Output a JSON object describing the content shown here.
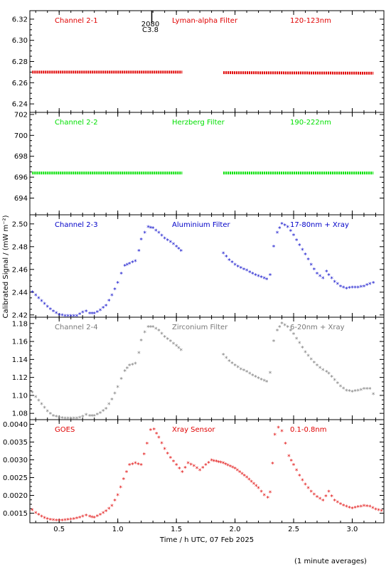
{
  "xaxis": {
    "label": "Time / h UTC, 07 Feb 2025",
    "range": [
      0.25,
      3.27
    ],
    "ticks": [
      0.5,
      1.0,
      1.5,
      2.0,
      2.5,
      3.0
    ],
    "tick_labels": [
      "0.5",
      "1.0",
      "1.5",
      "2.0",
      "2.5",
      "3.0"
    ]
  },
  "ylabel": "Calibrated Signal / (mW m⁻²)",
  "footnote": "(1 minute averages)",
  "flare_marker": {
    "x": 1.29,
    "label1": "2080",
    "label2": "C3.8"
  },
  "chart_data": [
    {
      "type": "scatter",
      "labels": [
        "Channel 2-1",
        "Lyman-alpha Filter",
        "120-123nm"
      ],
      "color": "#e00000",
      "ylim": [
        6.232,
        6.328
      ],
      "yticks": [
        6.24,
        6.26,
        6.28,
        6.3,
        6.32
      ],
      "ytick_labels": [
        "6.24",
        "6.26",
        "6.28",
        "6.30",
        "6.32"
      ],
      "series": [
        {
          "x": [
            0.27,
            1.55
          ],
          "y": [
            6.27,
            6.27
          ]
        },
        {
          "x": [
            1.9,
            3.18
          ],
          "y": [
            6.2695,
            6.269
          ]
        }
      ],
      "marker": "dash"
    },
    {
      "type": "scatter",
      "labels": [
        "Channel 2-2",
        "Herzberg Filter",
        "190-222nm"
      ],
      "color": "#00e000",
      "ylim": [
        692.4,
        702.2
      ],
      "yticks": [
        694,
        696,
        698,
        700,
        702
      ],
      "ytick_labels": [
        "694",
        "696",
        "698",
        "700",
        "702"
      ],
      "series": [
        {
          "x": [
            0.27,
            1.55
          ],
          "y": [
            696.4,
            696.4
          ]
        },
        {
          "x": [
            1.9,
            3.18
          ],
          "y": [
            696.4,
            696.4
          ]
        }
      ],
      "marker": "dash"
    },
    {
      "type": "scatter",
      "labels": [
        "Channel 2-3",
        "Aluminium Filter",
        "17-80nm + Xray"
      ],
      "color": "#0000c8",
      "ylim": [
        2.418,
        2.508
      ],
      "yticks": [
        2.42,
        2.44,
        2.46,
        2.48,
        2.5
      ],
      "ytick_labels": [
        "2.42",
        "2.44",
        "2.46",
        "2.48",
        "2.50"
      ],
      "series": [
        {
          "x": [
            0.27,
            0.3,
            0.35,
            0.4,
            0.45,
            0.5,
            0.55,
            0.6,
            0.65,
            0.7,
            0.73,
            0.76,
            0.8,
            0.85,
            0.9,
            0.95,
            1.0,
            1.03,
            1.06,
            1.1,
            1.15,
            1.18,
            1.2,
            1.23,
            1.26,
            1.3,
            1.35,
            1.4,
            1.45,
            1.5,
            1.54
          ],
          "y": [
            2.44,
            2.437,
            2.432,
            2.427,
            2.423,
            2.42,
            2.419,
            2.419,
            2.419,
            2.422,
            2.423,
            2.421,
            2.421,
            2.424,
            2.428,
            2.437,
            2.448,
            2.456,
            2.463,
            2.465,
            2.467,
            2.476,
            2.486,
            2.492,
            2.497,
            2.496,
            2.492,
            2.487,
            2.484,
            2.48,
            2.476
          ]
        },
        {
          "x": [
            1.9,
            1.95,
            2.0,
            2.05,
            2.1,
            2.15,
            2.2,
            2.25,
            2.27,
            2.3,
            2.33,
            2.36,
            2.4,
            2.45,
            2.5,
            2.55,
            2.6,
            2.65,
            2.7,
            2.75,
            2.78,
            2.8,
            2.85,
            2.9,
            2.95,
            3.0,
            3.05,
            3.1,
            3.15,
            3.18
          ],
          "y": [
            2.474,
            2.468,
            2.464,
            2.461,
            2.459,
            2.456,
            2.454,
            2.452,
            2.451,
            2.455,
            2.48,
            2.492,
            2.5,
            2.497,
            2.49,
            2.481,
            2.473,
            2.464,
            2.456,
            2.452,
            2.458,
            2.455,
            2.449,
            2.445,
            2.443,
            2.444,
            2.444,
            2.445,
            2.447,
            2.448
          ]
        }
      ],
      "marker": "star"
    },
    {
      "type": "scatter",
      "labels": [
        "Channel 2-4",
        "Zirconium Filter",
        "6-20nm + Xray"
      ],
      "color": "#787878",
      "ylim": [
        1.073,
        1.187
      ],
      "yticks": [
        1.08,
        1.1,
        1.12,
        1.14,
        1.16,
        1.18
      ],
      "ytick_labels": [
        "1.08",
        "1.10",
        "1.12",
        "1.14",
        "1.16",
        "1.18"
      ],
      "series": [
        {
          "x": [
            0.27,
            0.3,
            0.35,
            0.4,
            0.45,
            0.5,
            0.55,
            0.6,
            0.65,
            0.7,
            0.73,
            0.76,
            0.8,
            0.85,
            0.9,
            0.95,
            1.0,
            1.03,
            1.06,
            1.1,
            1.15,
            1.18,
            1.2,
            1.23,
            1.26,
            1.3,
            1.35,
            1.4,
            1.45,
            1.5,
            1.54
          ],
          "y": [
            1.103,
            1.098,
            1.09,
            1.082,
            1.077,
            1.075,
            1.074,
            1.074,
            1.074,
            1.076,
            1.078,
            1.077,
            1.077,
            1.08,
            1.085,
            1.095,
            1.109,
            1.118,
            1.127,
            1.133,
            1.135,
            1.147,
            1.161,
            1.17,
            1.176,
            1.176,
            1.172,
            1.165,
            1.16,
            1.155,
            1.15
          ]
        },
        {
          "x": [
            1.9,
            1.95,
            2.0,
            2.05,
            2.1,
            2.15,
            2.2,
            2.25,
            2.27,
            2.3,
            2.33,
            2.36,
            2.4,
            2.45,
            2.5,
            2.55,
            2.6,
            2.65,
            2.7,
            2.75,
            2.78,
            2.8,
            2.85,
            2.9,
            2.95,
            3.0,
            3.05,
            3.1,
            3.15,
            3.18
          ],
          "y": [
            1.145,
            1.138,
            1.133,
            1.129,
            1.126,
            1.122,
            1.119,
            1.116,
            1.115,
            1.125,
            1.16,
            1.172,
            1.18,
            1.176,
            1.168,
            1.158,
            1.148,
            1.14,
            1.133,
            1.128,
            1.126,
            1.124,
            1.117,
            1.11,
            1.105,
            1.104,
            1.105,
            1.107,
            1.107,
            1.101
          ]
        }
      ],
      "marker": "star"
    },
    {
      "type": "scatter",
      "labels": [
        "GOES",
        "Xray Sensor",
        "0.1-0.8nm"
      ],
      "color": "#e00000",
      "ylim": [
        0.00123,
        0.00413
      ],
      "yticks": [
        0.0015,
        0.002,
        0.0025,
        0.003,
        0.0035,
        0.004
      ],
      "ytick_labels": [
        "0.0015",
        "0.0020",
        "0.0025",
        "0.0030",
        "0.0035",
        "0.0040"
      ],
      "series": [
        {
          "x": [
            0.27,
            0.3,
            0.35,
            0.4,
            0.45,
            0.5,
            0.55,
            0.6,
            0.65,
            0.7,
            0.73,
            0.76,
            0.8,
            0.85,
            0.9,
            0.95,
            1.0,
            1.05,
            1.1,
            1.15,
            1.2,
            1.25,
            1.28,
            1.31,
            1.35,
            1.4,
            1.45,
            1.5,
            1.55,
            1.6,
            1.65,
            1.7,
            1.75,
            1.8,
            1.9,
            2.0,
            2.1,
            2.2,
            2.25,
            2.28
          ],
          "y": [
            0.00158,
            0.0015,
            0.0014,
            0.00133,
            0.0013,
            0.00129,
            0.0013,
            0.00132,
            0.00135,
            0.0014,
            0.00143,
            0.0014,
            0.00137,
            0.00145,
            0.00155,
            0.0017,
            0.002,
            0.00245,
            0.00285,
            0.0029,
            0.00285,
            0.00345,
            0.00383,
            0.00385,
            0.00362,
            0.0033,
            0.00305,
            0.00285,
            0.00265,
            0.0029,
            0.00282,
            0.0027,
            0.00285,
            0.00298,
            0.0029,
            0.00275,
            0.0025,
            0.0022,
            0.002,
            0.00193
          ]
        },
        {
          "x": [
            2.3,
            2.34,
            2.37,
            2.4,
            2.43,
            2.46,
            2.5,
            2.55,
            2.6,
            2.65,
            2.7,
            2.75,
            2.8,
            2.85,
            2.9,
            2.95,
            3.0,
            3.05,
            3.1,
            3.15,
            3.2,
            3.25
          ],
          "y": [
            0.00208,
            0.0037,
            0.0039,
            0.0038,
            0.00345,
            0.0031,
            0.00285,
            0.00255,
            0.0023,
            0.0021,
            0.00195,
            0.00185,
            0.0021,
            0.00185,
            0.00175,
            0.00168,
            0.00163,
            0.00167,
            0.0017,
            0.00168,
            0.0016,
            0.00156
          ]
        }
      ],
      "marker": "star"
    }
  ]
}
